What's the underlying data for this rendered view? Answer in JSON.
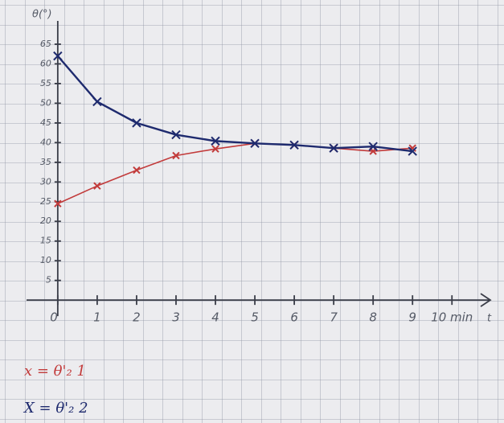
{
  "chart_data": {
    "type": "line",
    "y_label": "θ(°)",
    "x_label": "t",
    "x": [
      0,
      1,
      2,
      3,
      4,
      5,
      6,
      7,
      8,
      9
    ],
    "series": [
      {
        "name": "x = θ'₂ 1",
        "color": "#c23b3b",
        "values": [
          24.5,
          29,
          33,
          36.7,
          38.4,
          39.8,
          39.4,
          38.6,
          37.8,
          38.6
        ]
      },
      {
        "name": "X = θ'₂ 2",
        "color": "#1e2a6e",
        "values": [
          62,
          50.4,
          45,
          42,
          40.4,
          39.8,
          39.4,
          38.6,
          39,
          37.8
        ]
      }
    ],
    "xlim": [
      -1.2,
      11.3
    ],
    "ylim": [
      -30,
      75
    ],
    "xticks": [
      0,
      1,
      2,
      3,
      4,
      5,
      6,
      7,
      8,
      9,
      {
        "value": 10,
        "label": "10 min"
      }
    ],
    "yticks": [
      5,
      10,
      15,
      20,
      25,
      30,
      35,
      40,
      45,
      50,
      55,
      60,
      65
    ],
    "grid": true
  }
}
